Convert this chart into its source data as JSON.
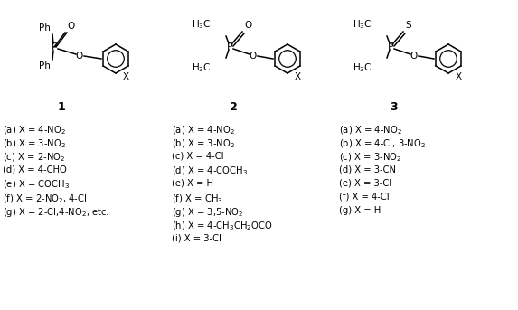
{
  "bg_color": "#ffffff",
  "fig_width": 5.73,
  "fig_height": 3.43,
  "dpi": 100,
  "compound1_label": "1",
  "compound2_label": "2",
  "compound3_label": "3",
  "compound1_items": [
    "(a) X = 4-NO$_2$",
    "(b) X = 3-NO$_2$",
    "(c) X = 2-NO$_2$",
    "(d) X = 4-CHO",
    "(e) X = COCH$_3$",
    "(f) X = 2-NO$_2$, 4-Cl",
    "(g) X = 2-Cl,4-NO$_2$, etc."
  ],
  "compound2_items": [
    "(a) X = 4-NO$_2$",
    "(b) X = 3-NO$_2$",
    "(c) X = 4-Cl",
    "(d) X = 4-COCH$_3$",
    "(e) X = H",
    "(f) X = CH$_3$",
    "(g) X = 3,5-NO$_2$",
    "(h) X = 4-CH$_3$CH$_2$OCO",
    "(i) X = 3-Cl"
  ],
  "compound3_items": [
    "(a) X = 4-NO$_2$",
    "(b) X = 4-Cl, 3-NO$_2$",
    "(c) X = 3-NO$_2$",
    "(d) X = 3-CN",
    "(e) X = 3-Cl",
    "(f) X = 4-Cl",
    "(g) X = H"
  ],
  "text_color": "#000000",
  "fontsize_items": 7.2,
  "fontsize_label": 9,
  "fontsize_struct": 7.5
}
